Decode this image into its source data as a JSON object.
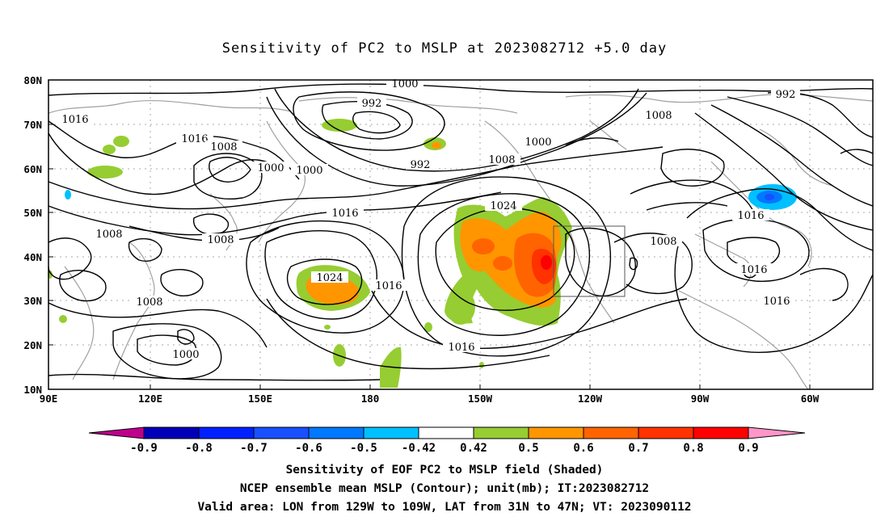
{
  "title": "Sensitivity of PC2 to MSLP at 2023082712 +5.0 day",
  "lat_labels": [
    "80N",
    "70N",
    "60N",
    "50N",
    "40N",
    "30N",
    "20N",
    "10N"
  ],
  "lon_labels": [
    "90E",
    "120E",
    "150E",
    "180",
    "150W",
    "120W",
    "90W",
    "60W"
  ],
  "contour_labels": [
    "1000",
    "992",
    "1016",
    "1016",
    "1008",
    "1000",
    "1000",
    "992",
    "1000",
    "1008",
    "1024",
    "1016",
    "1008",
    "1008",
    "1008",
    "992",
    "1016",
    "1008",
    "1024",
    "1016",
    "1016",
    "1016",
    "1008",
    "1000",
    "1016"
  ],
  "colorbar": {
    "labels": [
      "-0.9",
      "-0.8",
      "-0.7",
      "-0.6",
      "-0.5",
      "-0.42",
      "0.42",
      "0.5",
      "0.6",
      "0.7",
      "0.8",
      "0.9"
    ],
    "colors": [
      "#c0008c",
      "#0000b8",
      "#0020ff",
      "#1850ff",
      "#0078ff",
      "#00c0ff",
      "#ffffff",
      "#96cd32",
      "#ff9600",
      "#ff6400",
      "#ff3200",
      "#ff0000",
      "#ff96c8"
    ]
  },
  "captions": [
    "Sensitivity of EOF PC2 to MSLP field (Shaded)",
    "NCEP ensemble mean MSLP (Contour); unit(mb); IT:2023082712",
    "Valid area: LON from 129W to 109W, LAT from 31N to 47N; VT: 2023090112"
  ]
}
